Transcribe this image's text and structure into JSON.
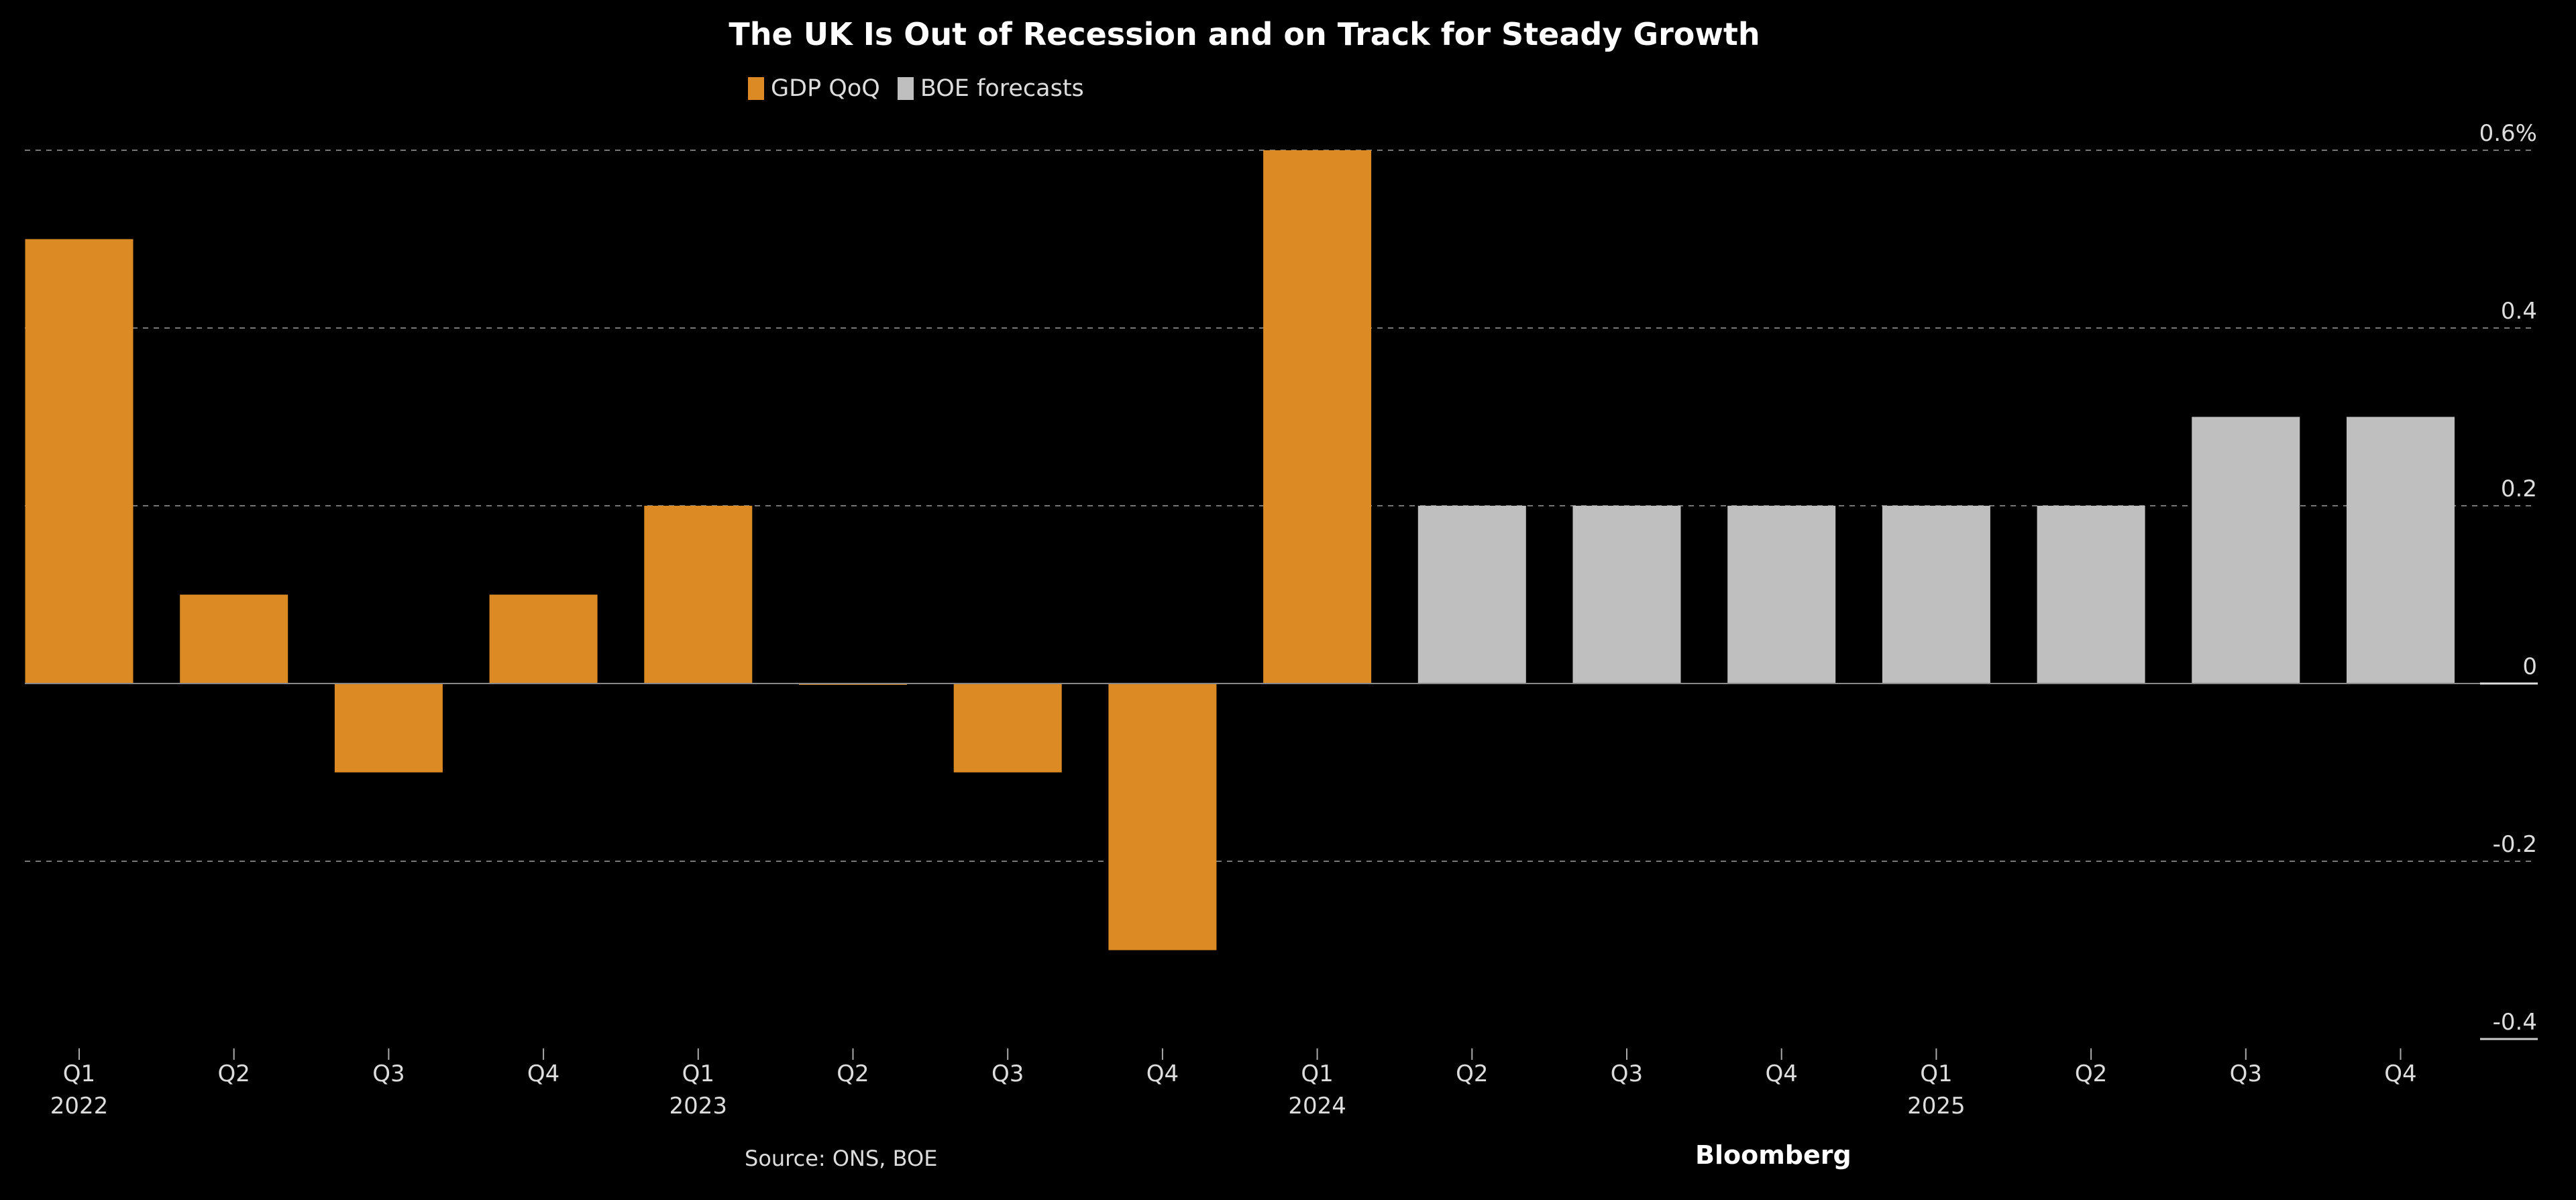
{
  "chart_data": {
    "type": "bar",
    "title": "The UK Is Out of Recession and on Track for Steady Growth",
    "xlabel": "",
    "ylabel": "",
    "ylim": [
      -0.4,
      0.6
    ],
    "yticks": [
      {
        "value": 0.6,
        "label": "0.6%"
      },
      {
        "value": 0.4,
        "label": "0.4"
      },
      {
        "value": 0.2,
        "label": "0.2"
      },
      {
        "value": 0,
        "label": "0"
      },
      {
        "value": -0.2,
        "label": "-0.2"
      },
      {
        "value": -0.4,
        "label": "-0.4"
      }
    ],
    "grid": true,
    "legend_position": "top-left",
    "categories": [
      "Q1 2022",
      "Q2 2022",
      "Q3 2022",
      "Q4 2022",
      "Q1 2023",
      "Q2 2023",
      "Q3 2023",
      "Q4 2023",
      "Q1 2024",
      "Q2 2024",
      "Q3 2024",
      "Q4 2024",
      "Q1 2025",
      "Q2 2025",
      "Q3 2025",
      "Q4 2025"
    ],
    "quarter_labels": [
      "Q1",
      "Q2",
      "Q3",
      "Q4",
      "Q1",
      "Q2",
      "Q3",
      "Q4",
      "Q1",
      "Q2",
      "Q3",
      "Q4",
      "Q1",
      "Q2",
      "Q3",
      "Q4"
    ],
    "year_labels": [
      "2022",
      "",
      "",
      "",
      "2023",
      "",
      "",
      "",
      "2024",
      "",
      "",
      "",
      "2025",
      "",
      "",
      ""
    ],
    "series": [
      {
        "name": "GDP QoQ",
        "color": "#dc8b24",
        "values": [
          0.5,
          0.1,
          -0.1,
          0.1,
          0.2,
          0.0,
          -0.1,
          -0.3,
          0.6,
          null,
          null,
          null,
          null,
          null,
          null,
          null
        ]
      },
      {
        "name": "BOE forecasts",
        "color": "#bfbfbf",
        "values": [
          null,
          null,
          null,
          null,
          null,
          null,
          null,
          null,
          null,
          0.2,
          0.2,
          0.2,
          0.2,
          0.2,
          0.3,
          0.3
        ]
      }
    ]
  },
  "footer": {
    "source": "Source: ONS, BOE",
    "brand": "Bloomberg"
  }
}
